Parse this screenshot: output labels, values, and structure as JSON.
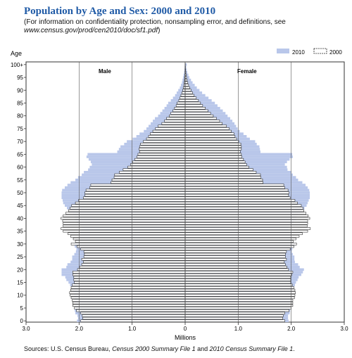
{
  "title": "Population by Age and Sex: 2000 and 2010",
  "subtitle": {
    "text": "(For information on confidentiality protection, nonsampling error, and definitions, see ",
    "url": "www.census.gov/prod/cen2010/doc/sf1.pdf",
    "close": ")"
  },
  "source": {
    "prefix": "Sources: U.S. Census Bureau, ",
    "title1": "Census 2000 Summary File 1",
    "mid": " and ",
    "title2": "2010 Census Summary File 1",
    "suffix": "."
  },
  "colors": {
    "fill_2010": "#b9c7ea",
    "fill_2000": "#ffffff",
    "stroke_2000": "#222222",
    "grid": "#555555",
    "title": "#1f5aa6"
  },
  "chart_data": {
    "type": "bar",
    "orientation": "horizontal-pyramid",
    "ylabel": "Age",
    "xlabel": "Millions",
    "xlim": [
      -3.0,
      3.0
    ],
    "x_ticks": [
      "3.0",
      "2.0",
      "1.0",
      "0",
      "1.0",
      "2.0",
      "3.0"
    ],
    "y_ticks": [
      "0",
      "5",
      "10",
      "15",
      "20",
      "25",
      "30",
      "35",
      "40",
      "45",
      "50",
      "55",
      "60",
      "65",
      "70",
      "75",
      "80",
      "85",
      "90",
      "95",
      "100+"
    ],
    "panel_labels": {
      "left": "Male",
      "right": "Female"
    },
    "legend": {
      "position": "top-right",
      "items": [
        {
          "name": "2010",
          "style": "filled"
        },
        {
          "name": "2000",
          "style": "outline"
        }
      ]
    },
    "grid": true,
    "ages": "0 to 100+ by single year of age",
    "series": [
      {
        "name": "2010",
        "male": [
          2.04,
          2.02,
          2.03,
          2.07,
          2.08,
          2.07,
          2.06,
          2.07,
          2.08,
          2.09,
          2.08,
          2.09,
          2.12,
          2.15,
          2.17,
          2.2,
          2.24,
          2.26,
          2.33,
          2.33,
          2.33,
          2.24,
          2.22,
          2.16,
          2.13,
          2.13,
          2.09,
          2.06,
          2.05,
          2.08,
          2.1,
          2.02,
          2.01,
          1.99,
          1.97,
          1.97,
          1.94,
          1.97,
          2.03,
          2.05,
          2.08,
          2.09,
          2.11,
          2.17,
          2.23,
          2.27,
          2.3,
          2.31,
          2.33,
          2.33,
          2.33,
          2.32,
          2.27,
          2.22,
          2.16,
          2.07,
          2.02,
          1.95,
          1.91,
          1.83,
          1.8,
          1.76,
          1.78,
          1.82,
          1.86,
          1.84,
          1.28,
          1.25,
          1.22,
          1.15,
          1.1,
          0.99,
          0.92,
          0.86,
          0.78,
          0.73,
          0.69,
          0.65,
          0.61,
          0.57,
          0.51,
          0.47,
          0.43,
          0.39,
          0.35,
          0.32,
          0.27,
          0.23,
          0.19,
          0.16,
          0.13,
          0.1,
          0.08,
          0.06,
          0.05,
          0.04,
          0.03,
          0.02,
          0.015,
          0.01,
          0.005
        ],
        "female": [
          1.95,
          1.94,
          1.94,
          1.97,
          1.98,
          1.97,
          1.96,
          1.97,
          1.98,
          1.99,
          1.98,
          1.99,
          2.02,
          2.04,
          2.07,
          2.09,
          2.12,
          2.14,
          2.19,
          2.22,
          2.24,
          2.16,
          2.13,
          2.07,
          2.06,
          2.06,
          2.03,
          2.01,
          2.02,
          2.05,
          2.08,
          2.01,
          2.0,
          1.99,
          1.96,
          1.97,
          1.94,
          1.97,
          2.03,
          2.05,
          2.09,
          2.1,
          2.13,
          2.19,
          2.25,
          2.29,
          2.31,
          2.33,
          2.35,
          2.35,
          2.35,
          2.34,
          2.31,
          2.27,
          2.21,
          2.13,
          2.09,
          2.03,
          2.0,
          1.93,
          1.92,
          1.88,
          1.92,
          1.97,
          2.03,
          2.02,
          1.42,
          1.41,
          1.4,
          1.35,
          1.32,
          1.22,
          1.16,
          1.1,
          1.03,
          0.99,
          0.96,
          0.93,
          0.89,
          0.85,
          0.8,
          0.76,
          0.71,
          0.66,
          0.61,
          0.56,
          0.5,
          0.44,
          0.38,
          0.32,
          0.27,
          0.22,
          0.18,
          0.14,
          0.11,
          0.08,
          0.06,
          0.04,
          0.03,
          0.02,
          0.03
        ]
      },
      {
        "name": "2000",
        "male": [
          1.97,
          1.93,
          1.94,
          1.97,
          2.05,
          2.09,
          2.12,
          2.12,
          2.13,
          2.15,
          2.17,
          2.18,
          2.16,
          2.15,
          2.13,
          2.09,
          2.1,
          2.1,
          2.12,
          2.12,
          2.03,
          1.99,
          1.95,
          1.92,
          1.95,
          1.91,
          1.9,
          1.91,
          1.97,
          2.04,
          2.15,
          2.07,
          2.11,
          2.16,
          2.21,
          2.3,
          2.34,
          2.3,
          2.3,
          2.31,
          2.34,
          2.3,
          2.25,
          2.2,
          2.17,
          2.14,
          2.07,
          2.01,
          1.92,
          1.89,
          1.89,
          1.87,
          1.8,
          1.78,
          1.4,
          1.38,
          1.34,
          1.33,
          1.24,
          1.17,
          1.08,
          1.03,
          0.99,
          0.95,
          0.91,
          0.89,
          0.86,
          0.87,
          0.86,
          0.84,
          0.79,
          0.73,
          0.69,
          0.66,
          0.61,
          0.56,
          0.51,
          0.44,
          0.39,
          0.35,
          0.3,
          0.27,
          0.23,
          0.2,
          0.17,
          0.15,
          0.12,
          0.1,
          0.08,
          0.06,
          0.045,
          0.035,
          0.025,
          0.018,
          0.013,
          0.009,
          0.006,
          0.004,
          0.003,
          0.002,
          0.001
        ],
        "female": [
          1.88,
          1.84,
          1.85,
          1.88,
          1.96,
          2.0,
          2.03,
          2.03,
          2.03,
          2.06,
          2.07,
          2.08,
          2.07,
          2.05,
          2.02,
          1.99,
          1.99,
          1.99,
          2.01,
          2.03,
          1.95,
          1.92,
          1.89,
          1.87,
          1.91,
          1.89,
          1.89,
          1.91,
          1.98,
          2.05,
          2.1,
          2.04,
          2.09,
          2.15,
          2.21,
          2.31,
          2.36,
          2.3,
          2.31,
          2.31,
          2.35,
          2.32,
          2.28,
          2.24,
          2.22,
          2.19,
          2.12,
          2.07,
          1.98,
          1.95,
          1.96,
          1.94,
          1.88,
          1.86,
          1.47,
          1.46,
          1.43,
          1.42,
          1.34,
          1.28,
          1.2,
          1.16,
          1.13,
          1.1,
          1.07,
          1.06,
          1.04,
          1.06,
          1.06,
          1.05,
          1.01,
          0.97,
          0.94,
          0.92,
          0.87,
          0.83,
          0.78,
          0.7,
          0.65,
          0.59,
          0.53,
          0.48,
          0.43,
          0.38,
          0.33,
          0.29,
          0.25,
          0.21,
          0.17,
          0.14,
          0.11,
          0.085,
          0.065,
          0.05,
          0.037,
          0.027,
          0.019,
          0.013,
          0.009,
          0.006,
          0.004
        ]
      }
    ]
  }
}
